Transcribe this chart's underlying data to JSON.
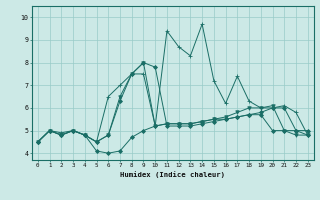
{
  "xlabel": "Humidex (Indice chaleur)",
  "xlim": [
    -0.5,
    23.5
  ],
  "ylim": [
    3.7,
    10.5
  ],
  "yticks": [
    4,
    5,
    6,
    7,
    8,
    9,
    10
  ],
  "xticks": [
    0,
    1,
    2,
    3,
    4,
    5,
    6,
    7,
    8,
    9,
    10,
    11,
    12,
    13,
    14,
    15,
    16,
    17,
    18,
    19,
    20,
    21,
    22,
    23
  ],
  "background_color": "#cce9e6",
  "grid_color": "#99ccc8",
  "line_color": "#1a6e66",
  "series": [
    {
      "y": [
        4.5,
        5.0,
        4.8,
        5.0,
        4.8,
        4.1,
        4.0,
        4.1,
        4.7,
        5.0,
        5.2,
        5.3,
        5.3,
        5.3,
        5.4,
        5.5,
        5.5,
        5.6,
        5.7,
        5.7,
        5.0,
        5.0,
        5.0,
        5.0
      ],
      "marker": "D",
      "markersize": 2.0
    },
    {
      "y": [
        4.5,
        5.0,
        4.8,
        5.0,
        4.8,
        4.5,
        4.8,
        6.3,
        7.5,
        8.0,
        7.8,
        5.2,
        5.2,
        5.2,
        5.3,
        5.4,
        5.5,
        5.6,
        5.7,
        5.8,
        6.0,
        6.0,
        5.0,
        4.8
      ],
      "marker": "D",
      "markersize": 2.0
    },
    {
      "y": [
        4.5,
        5.0,
        4.9,
        5.0,
        4.8,
        4.5,
        6.5,
        7.0,
        7.5,
        7.5,
        5.2,
        9.4,
        8.7,
        8.3,
        9.7,
        7.2,
        6.2,
        7.4,
        6.3,
        6.0,
        6.0,
        6.1,
        5.8,
        4.8
      ],
      "marker": "+",
      "markersize": 3.5
    },
    {
      "y": [
        4.5,
        5.0,
        4.8,
        5.0,
        4.8,
        4.5,
        4.8,
        6.5,
        7.5,
        8.0,
        5.2,
        5.3,
        5.3,
        5.3,
        5.4,
        5.5,
        5.6,
        5.8,
        6.0,
        6.0,
        6.1,
        5.0,
        4.8,
        4.8
      ],
      "marker": "v",
      "markersize": 2.5
    }
  ]
}
